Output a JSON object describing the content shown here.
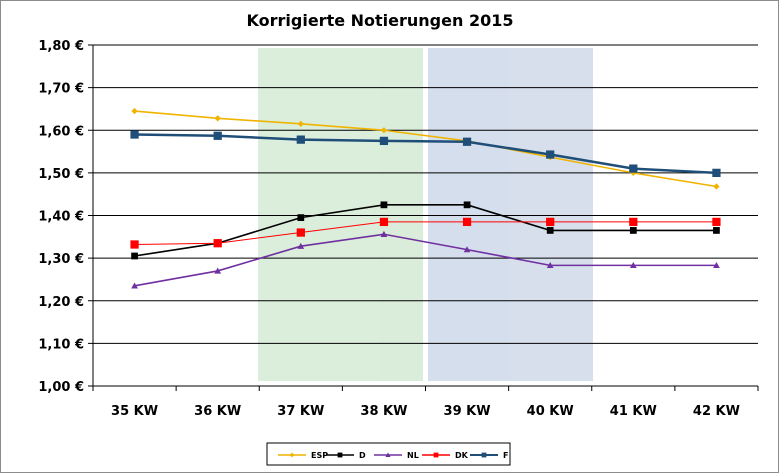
{
  "chart_data": {
    "type": "line",
    "title": "Korrigierte Notierungen 2015",
    "xlabel": "",
    "ylabel": "",
    "categories": [
      "35 KW",
      "36 KW",
      "37 KW",
      "38 KW",
      "39 KW",
      "40 KW",
      "41 KW",
      "42 KW"
    ],
    "ylim": [
      1.0,
      1.8
    ],
    "yticks": [
      "1,00 €",
      "1,10 €",
      "1,20 €",
      "1,30 €",
      "1,40 €",
      "1,50 €",
      "1,60 €",
      "1,70 €",
      "1,80 €"
    ],
    "grid": true,
    "legend_position": "bottom",
    "series": [
      {
        "name": "ESP",
        "color": "#F0B400",
        "marker": "diamond",
        "values": [
          1.645,
          1.628,
          1.615,
          1.6,
          1.575,
          1.537,
          1.5,
          1.468
        ]
      },
      {
        "name": "D",
        "color": "#000000",
        "marker": "square",
        "values": [
          1.305,
          1.335,
          1.395,
          1.425,
          1.425,
          1.365,
          1.365,
          1.365
        ]
      },
      {
        "name": "NL",
        "color": "#7030A0",
        "marker": "triangle",
        "values": [
          1.235,
          1.27,
          1.328,
          1.356,
          1.32,
          1.283,
          1.283,
          1.283
        ]
      },
      {
        "name": "DK",
        "color": "#FF0000",
        "marker": "square",
        "values": [
          1.332,
          1.335,
          1.36,
          1.385,
          1.385,
          1.385,
          1.385,
          1.385
        ]
      },
      {
        "name": "F",
        "color": "#1F4E79",
        "marker": "square",
        "values": [
          1.59,
          1.587,
          1.578,
          1.575,
          1.573,
          1.543,
          1.51,
          1.5
        ]
      }
    ]
  }
}
